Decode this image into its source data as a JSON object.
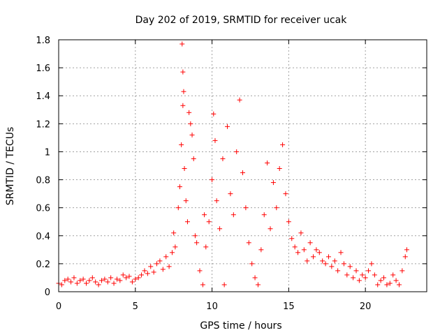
{
  "chart_data": {
    "type": "scatter",
    "title": "Day 202 of 2019, SRMTID for receiver ucak",
    "xlabel": "GPS time / hours",
    "ylabel": "SRMTID / TECUs",
    "xlim": [
      0,
      24
    ],
    "ylim": [
      0,
      1.8
    ],
    "xticks": [
      0,
      5,
      10,
      15,
      20
    ],
    "yticks": [
      0,
      0.2,
      0.4,
      0.6,
      0.8,
      1,
      1.2,
      1.4,
      1.6,
      1.8
    ],
    "x_tick_labels": [
      "0",
      "5",
      "10",
      "15",
      "20"
    ],
    "y_tick_labels": [
      "0",
      "0.2",
      "0.4",
      "0.6",
      "0.8",
      "1",
      "1.2",
      "1.4",
      "1.6",
      "1.8"
    ],
    "grid": true,
    "marker": "plus",
    "color": "#ff0000",
    "series": [
      {
        "name": "SRMTID",
        "points": [
          [
            0.0,
            0.06
          ],
          [
            0.2,
            0.05
          ],
          [
            0.4,
            0.08
          ],
          [
            0.6,
            0.09
          ],
          [
            0.8,
            0.07
          ],
          [
            1.0,
            0.1
          ],
          [
            1.2,
            0.06
          ],
          [
            1.4,
            0.08
          ],
          [
            1.6,
            0.09
          ],
          [
            1.8,
            0.06
          ],
          [
            2.0,
            0.08
          ],
          [
            2.2,
            0.1
          ],
          [
            2.4,
            0.07
          ],
          [
            2.6,
            0.05
          ],
          [
            2.8,
            0.08
          ],
          [
            3.0,
            0.09
          ],
          [
            3.2,
            0.07
          ],
          [
            3.4,
            0.1
          ],
          [
            3.6,
            0.06
          ],
          [
            3.8,
            0.09
          ],
          [
            4.0,
            0.08
          ],
          [
            4.2,
            0.12
          ],
          [
            4.4,
            0.1
          ],
          [
            4.6,
            0.11
          ],
          [
            4.8,
            0.07
          ],
          [
            5.0,
            0.09
          ],
          [
            5.2,
            0.1
          ],
          [
            5.4,
            0.12
          ],
          [
            5.6,
            0.15
          ],
          [
            5.8,
            0.13
          ],
          [
            6.0,
            0.18
          ],
          [
            6.2,
            0.14
          ],
          [
            6.4,
            0.2
          ],
          [
            6.6,
            0.22
          ],
          [
            6.8,
            0.16
          ],
          [
            7.0,
            0.25
          ],
          [
            7.2,
            0.18
          ],
          [
            7.4,
            0.28
          ],
          [
            7.5,
            0.42
          ],
          [
            7.6,
            0.32
          ],
          [
            7.8,
            0.6
          ],
          [
            7.9,
            0.75
          ],
          [
            8.0,
            1.05
          ],
          [
            8.05,
            1.77
          ],
          [
            8.1,
            1.57
          ],
          [
            8.15,
            1.43
          ],
          [
            8.1,
            1.33
          ],
          [
            8.2,
            0.88
          ],
          [
            8.3,
            0.65
          ],
          [
            8.4,
            0.5
          ],
          [
            8.5,
            1.28
          ],
          [
            8.6,
            1.2
          ],
          [
            8.7,
            1.12
          ],
          [
            8.8,
            0.95
          ],
          [
            8.9,
            0.4
          ],
          [
            9.0,
            0.35
          ],
          [
            9.2,
            0.15
          ],
          [
            9.4,
            0.05
          ],
          [
            9.5,
            0.55
          ],
          [
            9.6,
            0.32
          ],
          [
            9.8,
            0.5
          ],
          [
            10.0,
            0.8
          ],
          [
            10.1,
            1.27
          ],
          [
            10.2,
            1.08
          ],
          [
            10.3,
            0.65
          ],
          [
            10.5,
            0.45
          ],
          [
            10.7,
            0.95
          ],
          [
            10.8,
            0.05
          ],
          [
            11.0,
            1.18
          ],
          [
            11.2,
            0.7
          ],
          [
            11.4,
            0.55
          ],
          [
            11.6,
            1.0
          ],
          [
            11.8,
            1.37
          ],
          [
            12.0,
            0.85
          ],
          [
            12.2,
            0.6
          ],
          [
            12.4,
            0.35
          ],
          [
            12.6,
            0.2
          ],
          [
            12.8,
            0.1
          ],
          [
            13.0,
            0.05
          ],
          [
            13.2,
            0.3
          ],
          [
            13.4,
            0.55
          ],
          [
            13.6,
            0.92
          ],
          [
            13.8,
            0.45
          ],
          [
            14.0,
            0.78
          ],
          [
            14.2,
            0.6
          ],
          [
            14.4,
            0.88
          ],
          [
            14.6,
            1.05
          ],
          [
            14.8,
            0.7
          ],
          [
            15.0,
            0.5
          ],
          [
            15.2,
            0.38
          ],
          [
            15.4,
            0.32
          ],
          [
            15.6,
            0.28
          ],
          [
            15.8,
            0.42
          ],
          [
            16.0,
            0.3
          ],
          [
            16.2,
            0.22
          ],
          [
            16.4,
            0.35
          ],
          [
            16.6,
            0.25
          ],
          [
            16.8,
            0.3
          ],
          [
            17.0,
            0.28
          ],
          [
            17.2,
            0.22
          ],
          [
            17.4,
            0.2
          ],
          [
            17.6,
            0.25
          ],
          [
            17.8,
            0.18
          ],
          [
            18.0,
            0.22
          ],
          [
            18.2,
            0.15
          ],
          [
            18.4,
            0.28
          ],
          [
            18.6,
            0.2
          ],
          [
            18.8,
            0.12
          ],
          [
            19.0,
            0.18
          ],
          [
            19.2,
            0.1
          ],
          [
            19.4,
            0.15
          ],
          [
            19.6,
            0.08
          ],
          [
            19.8,
            0.12
          ],
          [
            20.0,
            0.1
          ],
          [
            20.2,
            0.15
          ],
          [
            20.4,
            0.2
          ],
          [
            20.6,
            0.12
          ],
          [
            20.8,
            0.05
          ],
          [
            21.0,
            0.08
          ],
          [
            21.2,
            0.1
          ],
          [
            21.4,
            0.05
          ],
          [
            21.6,
            0.06
          ],
          [
            21.8,
            0.12
          ],
          [
            22.0,
            0.08
          ],
          [
            22.2,
            0.05
          ],
          [
            22.4,
            0.15
          ],
          [
            22.6,
            0.25
          ],
          [
            22.7,
            0.3
          ]
        ]
      }
    ]
  }
}
